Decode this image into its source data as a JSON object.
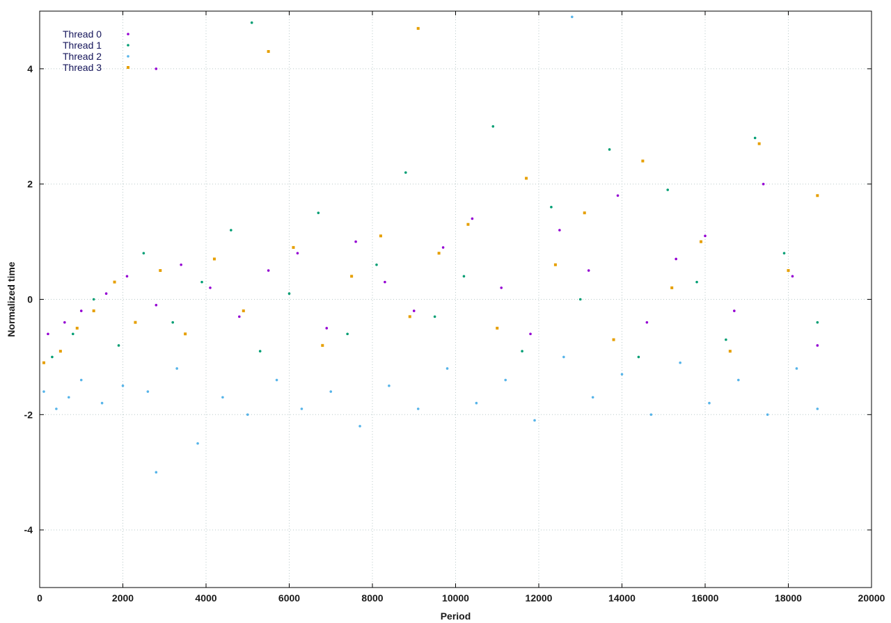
{
  "chart_data": {
    "type": "scatter",
    "title": "",
    "xlabel": "Period",
    "ylabel": "Normalized time",
    "xlim": [
      0,
      20000
    ],
    "ylim": [
      -5,
      5
    ],
    "x_ticks": [
      "0",
      "2000",
      "4000",
      "6000",
      "8000",
      "10000",
      "12000",
      "14000",
      "16000",
      "18000",
      "20000"
    ],
    "y_ticks": [
      "-4",
      "-2",
      "0",
      "2",
      "4"
    ],
    "grid": true,
    "legend_position": "top-left",
    "series": [
      {
        "name": "Thread 0",
        "color": "#9400d3",
        "marker": "dot",
        "points": [
          [
            200,
            -0.6
          ],
          [
            600,
            -0.4
          ],
          [
            1000,
            -0.2
          ],
          [
            1600,
            0.1
          ],
          [
            2100,
            0.4
          ],
          [
            2800,
            -0.1
          ],
          [
            3400,
            0.6
          ],
          [
            4100,
            0.2
          ],
          [
            4800,
            -0.3
          ],
          [
            5500,
            0.5
          ],
          [
            6200,
            0.8
          ],
          [
            6900,
            -0.5
          ],
          [
            7600,
            1.0
          ],
          [
            8300,
            0.3
          ],
          [
            9000,
            -0.2
          ],
          [
            9700,
            0.9
          ],
          [
            10400,
            1.4
          ],
          [
            11100,
            0.2
          ],
          [
            11800,
            -0.6
          ],
          [
            12500,
            1.2
          ],
          [
            13200,
            0.5
          ],
          [
            13900,
            1.8
          ],
          [
            14600,
            -0.4
          ],
          [
            15300,
            0.7
          ],
          [
            16000,
            1.1
          ],
          [
            16700,
            -0.2
          ],
          [
            17400,
            2.0
          ],
          [
            18100,
            0.4
          ],
          [
            18700,
            -0.8
          ],
          [
            2800,
            4.0
          ]
        ]
      },
      {
        "name": "Thread 1",
        "color": "#009e73",
        "marker": "dot",
        "points": [
          [
            300,
            -1.0
          ],
          [
            800,
            -0.6
          ],
          [
            1300,
            0.0
          ],
          [
            1900,
            -0.8
          ],
          [
            2500,
            0.8
          ],
          [
            3200,
            -0.4
          ],
          [
            3900,
            0.3
          ],
          [
            4600,
            1.2
          ],
          [
            5300,
            -0.9
          ],
          [
            6000,
            0.1
          ],
          [
            6700,
            1.5
          ],
          [
            7400,
            -0.6
          ],
          [
            8100,
            0.6
          ],
          [
            8800,
            2.2
          ],
          [
            9500,
            -0.3
          ],
          [
            10200,
            0.4
          ],
          [
            10900,
            3.0
          ],
          [
            11600,
            -0.9
          ],
          [
            12300,
            1.6
          ],
          [
            13000,
            0.0
          ],
          [
            13700,
            2.6
          ],
          [
            14400,
            -1.0
          ],
          [
            15100,
            1.9
          ],
          [
            15800,
            0.3
          ],
          [
            16500,
            -0.7
          ],
          [
            17200,
            2.8
          ],
          [
            17900,
            0.8
          ],
          [
            18700,
            -0.4
          ],
          [
            5100,
            4.8
          ]
        ]
      },
      {
        "name": "Thread 2",
        "color": "#56b4e9",
        "marker": "dot",
        "points": [
          [
            100,
            -1.6
          ],
          [
            400,
            -1.9
          ],
          [
            700,
            -1.7
          ],
          [
            1000,
            -1.4
          ],
          [
            1500,
            -1.8
          ],
          [
            2000,
            -1.5
          ],
          [
            2600,
            -1.6
          ],
          [
            2800,
            -3.0
          ],
          [
            3300,
            -1.2
          ],
          [
            3800,
            -2.5
          ],
          [
            4400,
            -1.7
          ],
          [
            5000,
            -2.0
          ],
          [
            5700,
            -1.4
          ],
          [
            6300,
            -1.9
          ],
          [
            7000,
            -1.6
          ],
          [
            7700,
            -2.2
          ],
          [
            8400,
            -1.5
          ],
          [
            9100,
            -1.9
          ],
          [
            9800,
            -1.2
          ],
          [
            10500,
            -1.8
          ],
          [
            11200,
            -1.4
          ],
          [
            11900,
            -2.1
          ],
          [
            12600,
            -1.0
          ],
          [
            13300,
            -1.7
          ],
          [
            14000,
            -1.3
          ],
          [
            14700,
            -2.0
          ],
          [
            15400,
            -1.1
          ],
          [
            16100,
            -1.8
          ],
          [
            16800,
            -1.4
          ],
          [
            17500,
            -2.0
          ],
          [
            18200,
            -1.2
          ],
          [
            18700,
            -1.9
          ],
          [
            12800,
            4.9
          ]
        ]
      },
      {
        "name": "Thread 3",
        "color": "#e69f00",
        "marker": "square",
        "points": [
          [
            100,
            -1.1
          ],
          [
            500,
            -0.9
          ],
          [
            900,
            -0.5
          ],
          [
            1300,
            -0.2
          ],
          [
            1800,
            0.3
          ],
          [
            2300,
            -0.4
          ],
          [
            2900,
            0.5
          ],
          [
            3500,
            -0.6
          ],
          [
            4200,
            0.7
          ],
          [
            4900,
            -0.2
          ],
          [
            5500,
            4.3
          ],
          [
            6100,
            0.9
          ],
          [
            6800,
            -0.8
          ],
          [
            7500,
            0.4
          ],
          [
            8200,
            1.1
          ],
          [
            8900,
            -0.3
          ],
          [
            9100,
            4.7
          ],
          [
            9600,
            0.8
          ],
          [
            10300,
            1.3
          ],
          [
            11000,
            -0.5
          ],
          [
            11700,
            2.1
          ],
          [
            12400,
            0.6
          ],
          [
            13100,
            1.5
          ],
          [
            13800,
            -0.7
          ],
          [
            14500,
            2.4
          ],
          [
            15200,
            0.2
          ],
          [
            15900,
            1.0
          ],
          [
            16600,
            -0.9
          ],
          [
            17300,
            2.7
          ],
          [
            18000,
            0.5
          ],
          [
            18700,
            1.8
          ]
        ]
      }
    ]
  }
}
